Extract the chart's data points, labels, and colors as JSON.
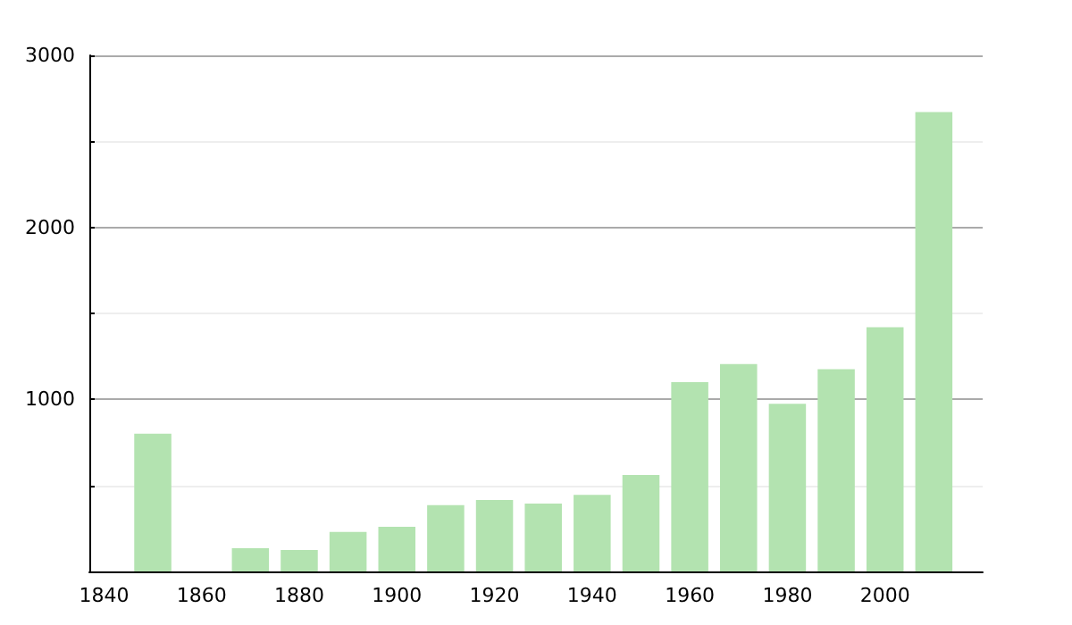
{
  "chart_data": {
    "type": "bar",
    "x": [
      1850,
      1860,
      1870,
      1880,
      1890,
      1900,
      1910,
      1920,
      1930,
      1940,
      1950,
      1960,
      1970,
      1980,
      1990,
      2000,
      2010
    ],
    "values": [
      800,
      null,
      135,
      125,
      230,
      260,
      385,
      415,
      395,
      445,
      560,
      1100,
      1205,
      975,
      1175,
      1420,
      2670
    ],
    "color": "#b3e3b0",
    "xlim": [
      1837,
      2020
    ],
    "xticks": [
      1840,
      1860,
      1880,
      1900,
      1920,
      1940,
      1960,
      1980,
      2000
    ],
    "ylim": [
      0,
      3000
    ],
    "yticks": [
      {
        "value": 500,
        "label": null
      },
      1000,
      {
        "value": 1500,
        "label": null
      },
      2000,
      {
        "value": 2500,
        "label": null
      },
      3000
    ],
    "grid": "y"
  }
}
